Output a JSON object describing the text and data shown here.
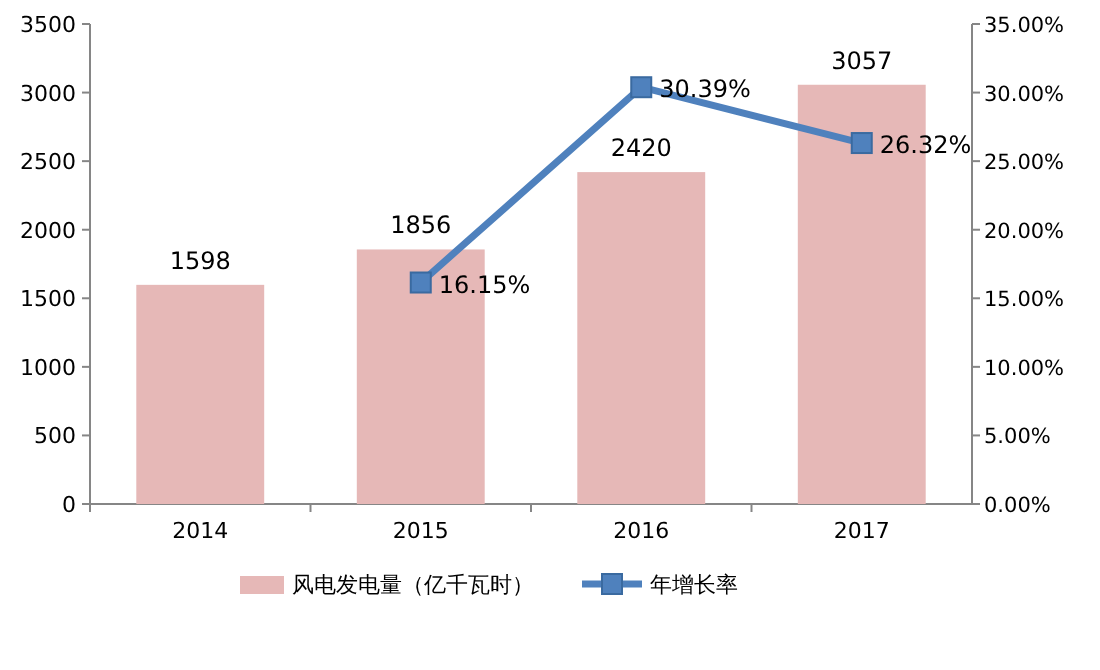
{
  "chart_data": {
    "type": "bar",
    "categories": [
      "2014",
      "2015",
      "2016",
      "2017"
    ],
    "series": [
      {
        "name": "风电发电量（亿千瓦时）",
        "color": "#e6b8b7",
        "values": [
          1598,
          1856,
          2420,
          3057
        ],
        "value_labels": [
          "1598",
          "1856",
          "2420",
          "3057"
        ]
      },
      {
        "name": "年增长率",
        "type": "line",
        "axis": "y2",
        "color": "#4f81bd",
        "marker": "square",
        "values": [
          null,
          16.15,
          30.39,
          26.32
        ],
        "value_labels": [
          null,
          "16.15%",
          "30.39%",
          "26.32%"
        ]
      }
    ],
    "ylim": [
      0,
      3500
    ],
    "yticks": [
      0,
      500,
      1000,
      1500,
      2000,
      2500,
      3000,
      3500
    ],
    "y2lim": [
      0,
      35
    ],
    "y2ticks": [
      {
        "value": 0,
        "label": "0.00%"
      },
      {
        "value": 5,
        "label": "5.00%"
      },
      {
        "value": 10,
        "label": "10.00%"
      },
      {
        "value": 15,
        "label": "15.00%"
      },
      {
        "value": 20,
        "label": "20.00%"
      },
      {
        "value": 25,
        "label": "25.00%"
      },
      {
        "value": 30,
        "label": "30.00%"
      },
      {
        "value": 35,
        "label": "35.00%"
      }
    ],
    "legend": "bottom"
  }
}
